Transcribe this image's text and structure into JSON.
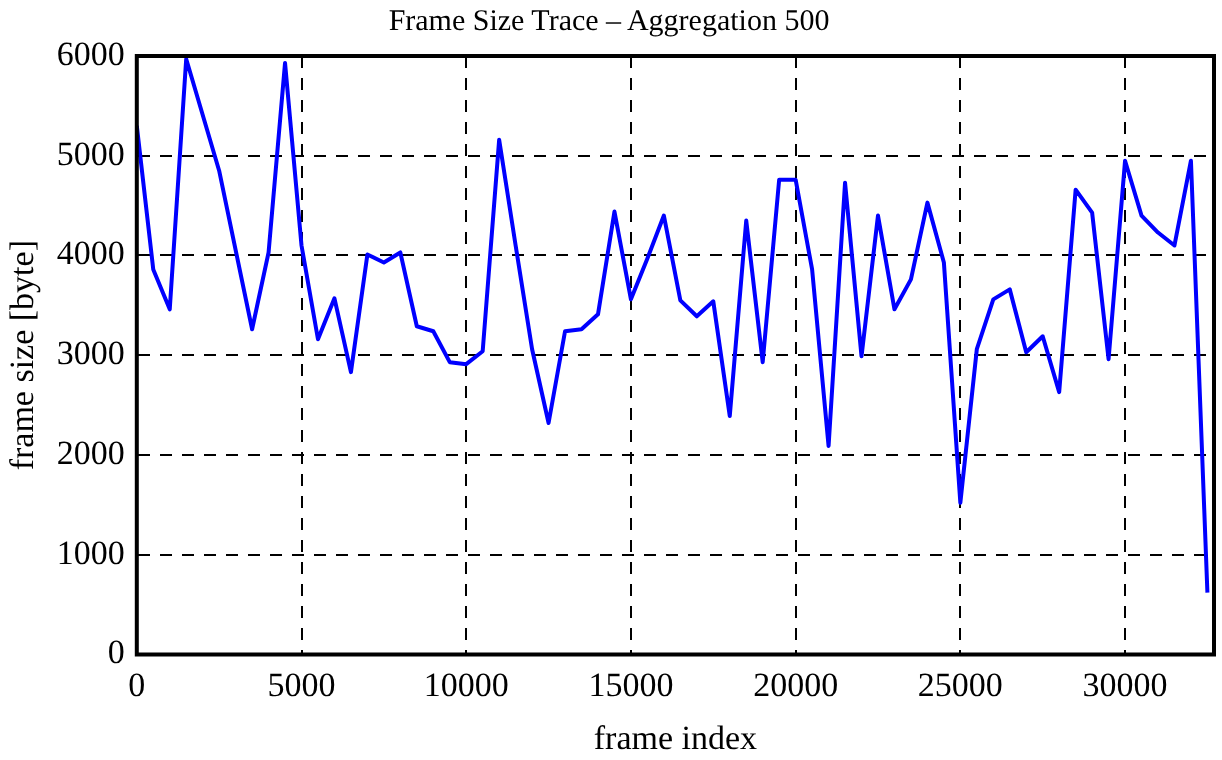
{
  "chart_data": {
    "type": "line",
    "title": "Frame Size Trace – Aggregation 500",
    "xlabel": "frame index",
    "ylabel": "frame size [byte]",
    "x": [
      0,
      500,
      1000,
      1500,
      2500,
      3500,
      4000,
      4500,
      5000,
      5500,
      6000,
      6500,
      7000,
      7500,
      8000,
      8500,
      9000,
      9500,
      10000,
      10500,
      11000,
      11500,
      12000,
      12500,
      13000,
      13500,
      14000,
      14500,
      15000,
      15500,
      16000,
      16500,
      17000,
      17500,
      18000,
      18500,
      19000,
      19500,
      20000,
      20500,
      21000,
      21500,
      22000,
      22500,
      23000,
      23500,
      24000,
      24500,
      25000,
      25500,
      26000,
      26500,
      27000,
      27500,
      28000,
      28500,
      29000,
      29500,
      30000,
      30500,
      31000,
      31500,
      32000,
      32500
    ],
    "series": [
      {
        "color": "#0000ff",
        "values": [
          5300,
          3860,
          3460,
          5970,
          4850,
          3260,
          4030,
          5930,
          4100,
          3160,
          3570,
          2830,
          4010,
          3930,
          4030,
          3290,
          3240,
          2930,
          2910,
          3040,
          5160,
          4100,
          3060,
          2320,
          3240,
          3260,
          3410,
          4440,
          3560,
          3970,
          4400,
          3550,
          3390,
          3540,
          2390,
          4350,
          2930,
          4760,
          4760,
          3860,
          2090,
          4730,
          2990,
          4400,
          3460,
          3760,
          4530,
          3930,
          1520,
          3060,
          3560,
          3660,
          3030,
          3190,
          2630,
          4660,
          4430,
          2960,
          4950,
          4400,
          4230,
          4100,
          4950,
          620
        ]
      }
    ],
    "xlim": [
      0,
      32700
    ],
    "xticks": [
      0,
      5000,
      10000,
      15000,
      20000,
      25000,
      30000
    ],
    "ylim": [
      0,
      6000
    ],
    "yticks": [
      0,
      1000,
      2000,
      3000,
      4000,
      5000,
      6000
    ],
    "grid": true,
    "legend": false,
    "marker": "none",
    "line_style": "solid"
  }
}
